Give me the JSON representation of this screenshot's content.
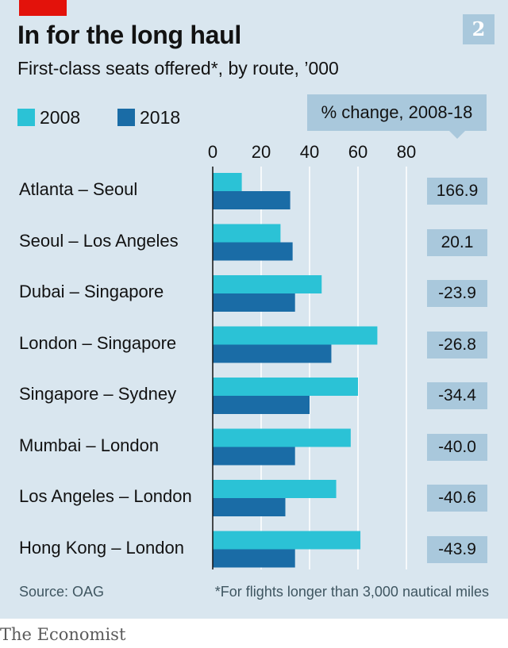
{
  "header": {
    "number": "2"
  },
  "chart_data": {
    "type": "bar",
    "orientation": "horizontal",
    "title": "In for the long haul",
    "subtitle": "First-class seats offered*, by route, ’000",
    "categories": [
      "Atlanta – Seoul",
      "Seoul – Los Angeles",
      "Dubai – Singapore",
      "London – Singapore",
      "Singapore – Sydney",
      "Mumbai – London",
      "Los Angeles – London",
      "Hong Kong – London"
    ],
    "series": [
      {
        "name": "2008",
        "color": "#2bc2d6",
        "values": [
          12,
          28,
          45,
          68,
          60,
          57,
          51,
          61
        ]
      },
      {
        "name": "2018",
        "color": "#1a6ca6",
        "values": [
          32,
          33,
          34,
          49,
          40,
          34,
          30,
          34
        ]
      }
    ],
    "xlim": [
      0,
      80
    ],
    "ticks": [
      "0",
      "20",
      "40",
      "60",
      "80"
    ],
    "grid": true,
    "change_header": "% change, 2008-18",
    "change_values": [
      "166.9",
      "20.1",
      "-23.9",
      "-26.8",
      "-34.4",
      "-40.0",
      "-40.6",
      "-43.9"
    ],
    "source": "Source: OAG",
    "footnote": "*For flights longer than 3,000 nautical miles"
  },
  "brand": "The Economist"
}
